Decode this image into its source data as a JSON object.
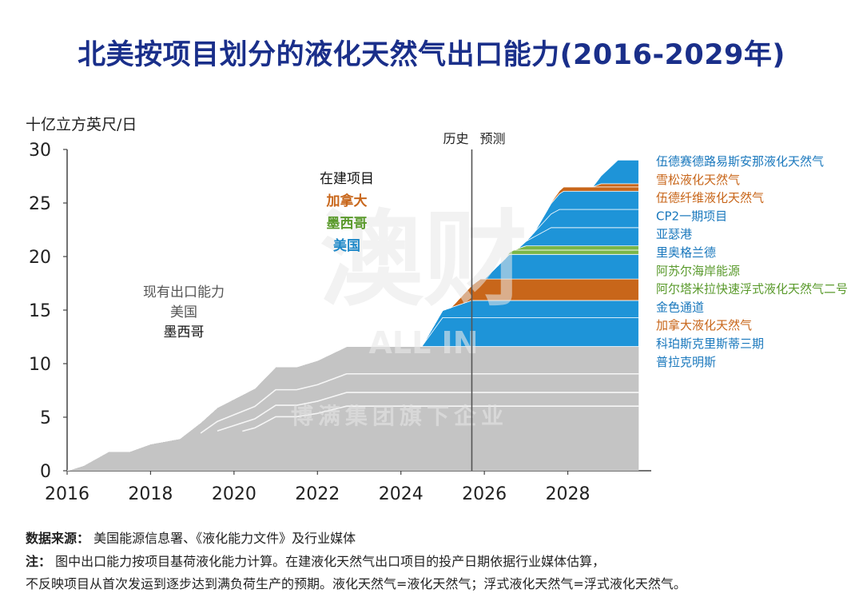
{
  "title": "北美按项目划分的液化天然气出口能力(2016-2029年)",
  "y_unit": "十亿立方英尺/日",
  "footer": {
    "source_label": "数据来源",
    "source_text": "美国能源信息署、《液化能力文件》及行业媒体",
    "note_label": "注",
    "note_line1": "图中出口能力按项目基荷液化能力计算。在建液化天然气出口项目的投产日期依据行业媒体估算，",
    "note_line2": "不反映项目从首次发运到逐步达到满负荷生产的预期。液化天然气=液化天然气；浮式液化天然气=浮式液化天然气。"
  },
  "watermark": {
    "main": "澳财",
    "sub": "ALL IN",
    "line": "博满集团旗下企业"
  },
  "chart_data": {
    "type": "area",
    "ylabel": "十亿立方英尺/日",
    "xlim": [
      2016,
      2030
    ],
    "ylim": [
      0,
      30
    ],
    "x_ticks": [
      2016,
      2018,
      2020,
      2022,
      2024,
      2026,
      2028
    ],
    "y_ticks": [
      0,
      5,
      10,
      15,
      20,
      25,
      30
    ],
    "divider": {
      "x": 2025.7,
      "left_label": "历史",
      "right_label": "预测"
    },
    "left_annotation": {
      "lines": [
        "现有出口能力",
        "美国",
        "墨西哥"
      ],
      "colors": [
        "#555555",
        "#555555",
        "#111111"
      ]
    },
    "mid_annotation": {
      "lines": [
        "在建项目",
        "加拿大",
        "墨西哥",
        "美国"
      ],
      "colors": [
        "#111111",
        "#c8661a",
        "#5a9a2c",
        "#1e88c8"
      ]
    },
    "colors": {
      "existing": "#c4c4c4",
      "us": "#1e94d8",
      "canada": "#c8661a",
      "mexico": "#7ab648"
    },
    "existing_capacity": {
      "x": [
        2016,
        2016.4,
        2017,
        2017.5,
        2018,
        2018.7,
        2019.2,
        2019.6,
        2020.5,
        2021,
        2021.5,
        2022,
        2022.7,
        2024.5,
        2029.7
      ],
      "y": [
        0,
        0.5,
        1.8,
        1.8,
        2.5,
        3,
        4.5,
        5.9,
        7.7,
        9.7,
        9.7,
        10.3,
        11.6,
        11.6,
        11.6
      ]
    },
    "series": [
      {
        "name": "普拉克明斯",
        "country": "us",
        "x": [
          2024.5,
          2025,
          2029.7
        ],
        "thickness": [
          0,
          2.7,
          2.7
        ]
      },
      {
        "name": "科珀斯克里斯蒂三期",
        "country": "us",
        "x": [
          2024.5,
          2025.7,
          2029.7
        ],
        "thickness": [
          0,
          1.6,
          1.6
        ]
      },
      {
        "name": "加拿大液化天然气",
        "country": "canada",
        "x": [
          2025.2,
          2025.9,
          2029.7
        ],
        "thickness": [
          0,
          2.0,
          2.0
        ]
      },
      {
        "name": "金色通道",
        "country": "us",
        "x": [
          2026,
          2026.6,
          2029.7
        ],
        "thickness": [
          0,
          2.3,
          2.3
        ]
      },
      {
        "name": "阿尔塔米拉快速浮式液化天然气二号",
        "country": "mexico",
        "x": [
          2026.5,
          2026.7,
          2029.7
        ],
        "thickness": [
          0,
          0.4,
          0.4
        ]
      },
      {
        "name": "阿苏尔海岸能源",
        "country": "mexico",
        "x": [
          2026.7,
          2027,
          2029.7
        ],
        "thickness": [
          0,
          0.4,
          0.4
        ]
      },
      {
        "name": "里奥格兰德",
        "country": "us",
        "x": [
          2026.8,
          2027.6,
          2029.7
        ],
        "thickness": [
          0,
          1.7,
          1.7
        ]
      },
      {
        "name": "亚瑟港",
        "country": "us",
        "x": [
          2027,
          2027.8,
          2029.7
        ],
        "thickness": [
          0,
          1.7,
          1.7
        ]
      },
      {
        "name": "CP2一期项目",
        "country": "us",
        "x": [
          2027.2,
          2027.9,
          2029.7
        ],
        "thickness": [
          0,
          1.7,
          1.7
        ]
      },
      {
        "name": "伍德纤维液化天然气",
        "country": "canada",
        "x": [
          2027.5,
          2027.9,
          2029.7
        ],
        "thickness": [
          0,
          0.4,
          0.4
        ]
      },
      {
        "name": "雪松液化天然气",
        "country": "canada",
        "x": [
          2028.6,
          2028.8,
          2029.7
        ],
        "thickness": [
          0,
          0.3,
          0.3
        ]
      },
      {
        "name": "伍德赛德路易斯安那液化天然气",
        "country": "us",
        "x": [
          2028.6,
          2029.2,
          2029.7
        ],
        "thickness": [
          0,
          2.2,
          2.2
        ]
      }
    ]
  }
}
